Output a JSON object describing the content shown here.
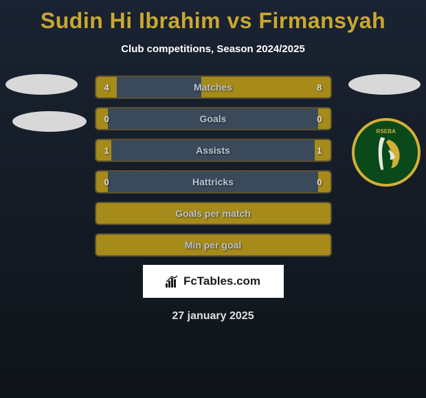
{
  "title": "Sudin Hi Ibrahim vs Firmansyah",
  "subtitle": "Club competitions, Season 2024/2025",
  "colors": {
    "background_top": "#1a2332",
    "background_bottom": "#0f1419",
    "title_color": "#c9a830",
    "bar_bg": "#3a4a5a",
    "bar_fill": "#a68a1a",
    "bar_border": "#5a5030",
    "text_light": "#d8dce0",
    "badge_green": "#0a4a1a",
    "badge_gold": "#d4af37"
  },
  "bars": [
    {
      "label": "Matches",
      "left_value": "4",
      "right_value": "8",
      "left_width_pct": 9,
      "right_width_pct": 55
    },
    {
      "label": "Goals",
      "left_value": "0",
      "right_value": "0",
      "left_width_pct": 5,
      "right_width_pct": 5
    },
    {
      "label": "Assists",
      "left_value": "1",
      "right_value": "1",
      "left_width_pct": 6.5,
      "right_width_pct": 6.5
    },
    {
      "label": "Hattricks",
      "left_value": "0",
      "right_value": "0",
      "left_width_pct": 5,
      "right_width_pct": 5
    },
    {
      "label": "Goals per match",
      "left_value": "",
      "right_value": "",
      "full": true
    },
    {
      "label": "Min per goal",
      "left_value": "",
      "right_value": "",
      "full": true
    }
  ],
  "footer_brand": "FcTables.com",
  "date": "27 january 2025"
}
